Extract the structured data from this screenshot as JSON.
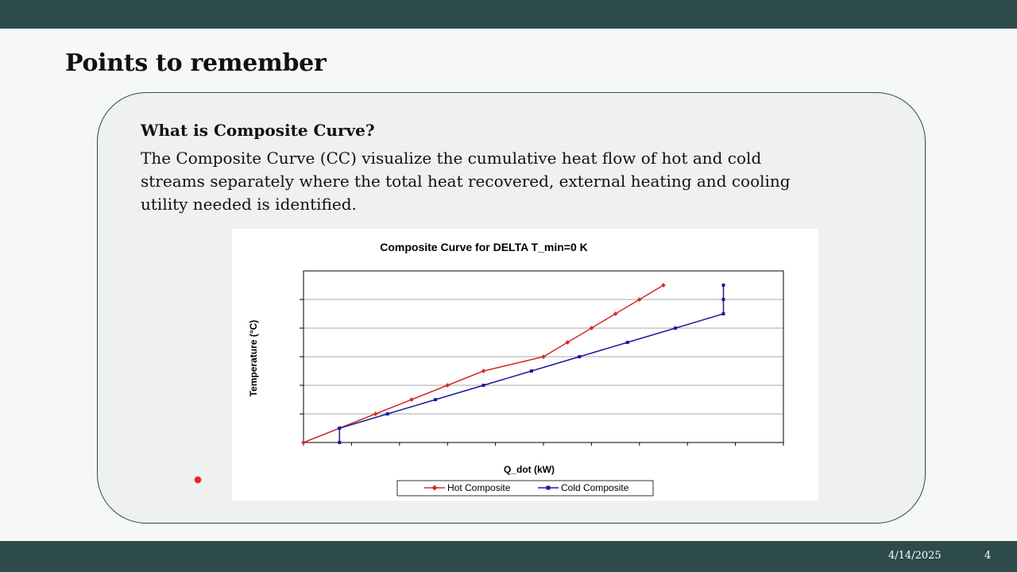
{
  "slide": {
    "title": "Points to remember",
    "footer_date": "4/14/2025",
    "page_number": "4"
  },
  "card": {
    "heading": "What is Composite Curve?",
    "body": "The Composite Curve (CC) visualize the cumulative heat flow of hot and cold streams separately where the total heat recovered, external heating and cooling utility needed is identified."
  },
  "colors": {
    "bar": "#2d4b4b",
    "hot": "#d22b2b",
    "cold": "#1a1a9c"
  },
  "chart_data": {
    "type": "line",
    "title": "Composite Curve for DELTA T_min=0 K",
    "xlabel": "Q_dot (kW)",
    "ylabel": "Temperature (°C)",
    "xlim": [
      0,
      10
    ],
    "ylim": [
      0,
      6
    ],
    "x_ticks": 10,
    "y_gridlines": 6,
    "grid": true,
    "tick_labels_shown": false,
    "legend": "bottom-center",
    "series": [
      {
        "name": "Hot Composite",
        "color": "#d22b2b",
        "marker": "diamond",
        "points": [
          [
            0,
            0
          ],
          [
            0.75,
            0.5
          ],
          [
            1.5,
            1.0
          ],
          [
            2.25,
            1.5
          ],
          [
            3.0,
            2.0
          ],
          [
            3.75,
            2.5
          ],
          [
            5.0,
            3.0
          ],
          [
            5.5,
            3.5
          ],
          [
            6.0,
            4.0
          ],
          [
            6.5,
            4.5
          ],
          [
            7.0,
            5.0
          ],
          [
            7.5,
            5.5
          ]
        ]
      },
      {
        "name": "Cold Composite",
        "color": "#1a1a9c",
        "marker": "square",
        "points": [
          [
            0.75,
            0
          ],
          [
            0.75,
            0.5
          ],
          [
            1.75,
            1.0
          ],
          [
            2.75,
            1.5
          ],
          [
            3.75,
            2.0
          ],
          [
            4.75,
            2.5
          ],
          [
            5.75,
            3.0
          ],
          [
            6.75,
            3.5
          ],
          [
            7.75,
            4.0
          ],
          [
            8.75,
            4.5
          ],
          [
            8.75,
            5.0
          ],
          [
            8.75,
            5.5
          ]
        ]
      }
    ]
  }
}
